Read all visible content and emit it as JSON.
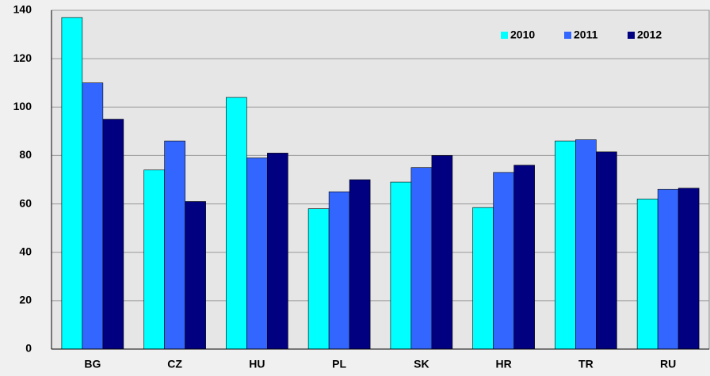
{
  "chart_data": {
    "type": "bar",
    "categories": [
      "BG",
      "CZ",
      "HU",
      "PL",
      "SK",
      "HR",
      "TR",
      "RU"
    ],
    "series": [
      {
        "name": "2010",
        "color": "#00ffff",
        "values": [
          137,
          74,
          104,
          58,
          69,
          58.5,
          86,
          62
        ]
      },
      {
        "name": "2011",
        "color": "#3366ff",
        "values": [
          110,
          86,
          79,
          65,
          75,
          73,
          86.5,
          66
        ]
      },
      {
        "name": "2012",
        "color": "#000080",
        "values": [
          95,
          61,
          81,
          70,
          80,
          76,
          81.5,
          66.5
        ]
      }
    ],
    "ylim": [
      0,
      140
    ],
    "yticks": [
      0,
      20,
      40,
      60,
      80,
      100,
      120,
      140
    ],
    "grid": true,
    "legend": "upper right"
  }
}
